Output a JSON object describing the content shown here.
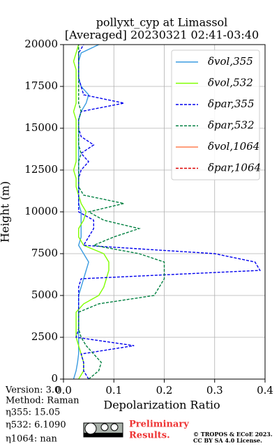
{
  "chart_data": {
    "type": "line",
    "title": [
      "pollyxt_cyp at Limassol",
      "[Averaged] 20230321 02:41-03:40"
    ],
    "xlabel": "Depolarization Ratio",
    "ylabel": "Height (m)",
    "xlim": [
      0,
      0.4
    ],
    "ylim": [
      0,
      20000
    ],
    "xticks": [
      {
        "value": 0,
        "label": "0.0"
      },
      0.1,
      0.2,
      0.3,
      0.4
    ],
    "yticks": [
      0,
      2500,
      5000,
      7500,
      10000,
      12500,
      15000,
      17500,
      20000
    ],
    "grid": true,
    "legend": "upper right",
    "y": [
      0,
      500,
      1000,
      1500,
      2000,
      2500,
      3000,
      3500,
      4000,
      4500,
      5000,
      5500,
      6000,
      6500,
      7000,
      7500,
      8000,
      8500,
      9000,
      9500,
      10000,
      10500,
      11000,
      11500,
      12000,
      12500,
      13000,
      13500,
      14000,
      14500,
      15000,
      15500,
      16000,
      16500,
      17000,
      17500,
      18000,
      18500,
      19000,
      19500,
      20000
    ],
    "series": [
      {
        "name": "δvol,355",
        "color": "#3a9be0",
        "dash": false,
        "values": [
          0.02,
          0.025,
          0.028,
          0.03,
          0.03,
          0.03,
          0.03,
          0.03,
          0.03,
          0.03,
          0.03,
          0.035,
          0.04,
          0.045,
          0.05,
          0.04,
          0.03,
          0.035,
          0.035,
          0.035,
          0.035,
          0.03,
          0.03,
          0.03,
          0.03,
          0.03,
          0.03,
          0.03,
          0.03,
          0.03,
          0.03,
          0.03,
          0.035,
          0.045,
          0.05,
          0.035,
          0.03,
          0.03,
          0.03,
          0.035,
          0.07
        ]
      },
      {
        "name": "δvol,532",
        "color": "#80ff00",
        "dash": false,
        "values": [
          0.03,
          0.04,
          0.04,
          0.035,
          0.03,
          0.025,
          0.025,
          0.025,
          0.025,
          0.04,
          0.07,
          0.08,
          0.085,
          0.09,
          0.09,
          0.08,
          0.04,
          0.03,
          0.03,
          0.04,
          0.045,
          0.035,
          0.03,
          0.025,
          0.025,
          0.02,
          0.025,
          0.025,
          0.025,
          0.025,
          0.025,
          0.025,
          0.02,
          0.025,
          0.025,
          0.025,
          0.025,
          0.025,
          0.02,
          0.025,
          0.03
        ]
      },
      {
        "name": "δpar,355",
        "color": "#0000ee",
        "dash": true,
        "values": [
          0.05,
          0.04,
          0.04,
          0.035,
          0.14,
          0.025,
          0.03,
          0.03,
          0.03,
          0.03,
          0.03,
          0.03,
          0.035,
          0.39,
          0.38,
          0.3,
          0.04,
          0.05,
          0.06,
          0.06,
          0.03,
          0.03,
          0.03,
          0.03,
          0.03,
          0.035,
          0.05,
          0.035,
          0.06,
          0.035,
          0.03,
          0.03,
          0.035,
          0.12,
          0.04,
          0.035,
          0.03,
          0.03,
          0.03,
          0.03,
          0.04
        ]
      },
      {
        "name": "δpar,532",
        "color": "#008040",
        "dash": true,
        "values": [
          0.05,
          0.07,
          0.075,
          0.06,
          0.045,
          0.035,
          0.03,
          0.03,
          0.03,
          0.07,
          0.18,
          0.19,
          0.2,
          0.2,
          0.2,
          0.15,
          0.06,
          0.1,
          0.15,
          0.08,
          0.05,
          0.12,
          0.04,
          0.03,
          0.03,
          0.03,
          0.03,
          0.035,
          0.03,
          0.03,
          0.03,
          0.03,
          0.035,
          0.03,
          0.03,
          0.03,
          0.03,
          0.03,
          0.03,
          0.03,
          0.03
        ]
      },
      {
        "name": "δvol,1064",
        "color": "#ff7f50",
        "dash": false,
        "values": [
          null,
          null,
          null,
          null,
          null,
          null,
          null,
          null,
          null,
          null,
          null,
          null,
          null,
          null,
          null,
          null,
          null,
          null,
          null,
          null,
          null,
          null,
          null,
          null,
          null,
          null,
          null,
          null,
          null,
          null,
          null,
          null,
          null,
          null,
          null,
          null,
          null,
          null,
          null,
          null,
          null
        ]
      },
      {
        "name": "δpar,1064",
        "color": "#dd0000",
        "dash": true,
        "values": [
          null,
          null,
          null,
          null,
          null,
          null,
          null,
          null,
          null,
          null,
          null,
          null,
          null,
          null,
          null,
          null,
          null,
          null,
          null,
          null,
          null,
          null,
          null,
          null,
          null,
          null,
          null,
          null,
          null,
          null,
          null,
          null,
          null,
          null,
          null,
          null,
          null,
          null,
          null,
          null,
          null
        ]
      }
    ],
    "notes": [
      "Version: 3.0",
      "Method: Raman",
      "η355:  15.05",
      "η532: 6.1090",
      "η1064:    nan"
    ],
    "preliminary": [
      "Preliminary",
      "Results."
    ],
    "copyright": [
      "© TROPOS & ECoE 2023.",
      "CC BY SA 4.0 License."
    ]
  }
}
